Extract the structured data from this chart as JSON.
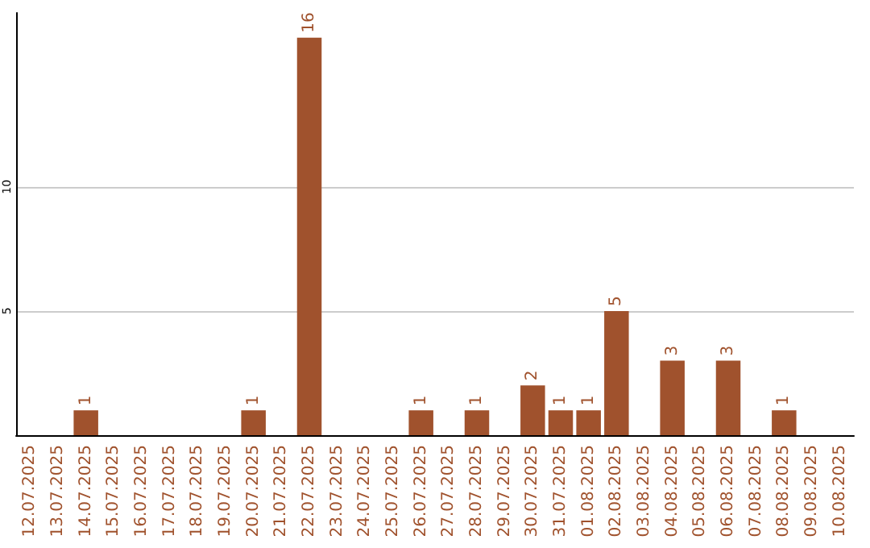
{
  "chart_data": {
    "type": "bar",
    "categories": [
      "12.07.2025",
      "13.07.2025",
      "14.07.2025",
      "15.07.2025",
      "16.07.2025",
      "17.07.2025",
      "18.07.2025",
      "19.07.2025",
      "20.07.2025",
      "21.07.2025",
      "22.07.2025",
      "23.07.2025",
      "24.07.2025",
      "25.07.2025",
      "26.07.2025",
      "27.07.2025",
      "28.07.2025",
      "29.07.2025",
      "30.07.2025",
      "31.07.2025",
      "01.08.2025",
      "02.08.2025",
      "03.08.2025",
      "04.08.2025",
      "05.08.2025",
      "06.08.2025",
      "07.08.2025",
      "08.08.2025",
      "09.08.2025",
      "10.08.2025"
    ],
    "values": [
      null,
      null,
      1,
      null,
      null,
      null,
      null,
      null,
      1,
      null,
      16,
      null,
      null,
      null,
      1,
      null,
      1,
      null,
      2,
      1,
      1,
      5,
      null,
      3,
      null,
      3,
      null,
      1,
      null,
      null
    ],
    "color": "#a0522d",
    "ylim": [
      0,
      17
    ],
    "yticks": [
      {
        "value": 0,
        "label": null
      },
      5,
      10
    ],
    "grid": "y",
    "data_labels": true
  }
}
